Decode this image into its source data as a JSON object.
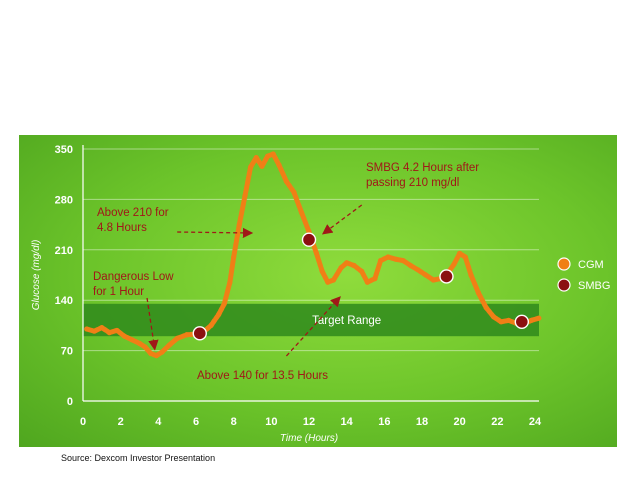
{
  "source_note": "Source: Dexcom Investor Presentation",
  "chart_data": {
    "type": "line",
    "xlabel": "Time (Hours)",
    "ylabel": "Glucose (mg/dl)",
    "xlim": [
      0,
      24
    ],
    "ylim": [
      0,
      350
    ],
    "x_ticks": [
      "0",
      "2",
      "4",
      "6",
      "8",
      "10",
      "12",
      "14",
      "16",
      "18",
      "20",
      "22",
      "24"
    ],
    "y_ticks": [
      "0",
      "70",
      "140",
      "210",
      "280",
      "350"
    ],
    "grid": true,
    "legend_position": "right",
    "target_range": {
      "label": "Target Range",
      "low": 90,
      "high": 135
    },
    "series": [
      {
        "name": "CGM",
        "color": "#f07f16",
        "style": "dotted-line",
        "points": [
          [
            0.2,
            100
          ],
          [
            0.6,
            97
          ],
          [
            1.0,
            102
          ],
          [
            1.4,
            95
          ],
          [
            1.8,
            98
          ],
          [
            2.2,
            90
          ],
          [
            2.6,
            85
          ],
          [
            3.0,
            80
          ],
          [
            3.3,
            75
          ],
          [
            3.6,
            66
          ],
          [
            3.9,
            63
          ],
          [
            4.2,
            68
          ],
          [
            4.6,
            78
          ],
          [
            5.0,
            87
          ],
          [
            5.5,
            92
          ],
          [
            6.0,
            93
          ],
          [
            6.4,
            96
          ],
          [
            6.8,
            105
          ],
          [
            7.2,
            120
          ],
          [
            7.5,
            135
          ],
          [
            7.8,
            165
          ],
          [
            8.0,
            200
          ],
          [
            8.3,
            245
          ],
          [
            8.6,
            285
          ],
          [
            8.9,
            325
          ],
          [
            9.2,
            338
          ],
          [
            9.5,
            326
          ],
          [
            9.8,
            340
          ],
          [
            10.1,
            343
          ],
          [
            10.4,
            328
          ],
          [
            10.8,
            305
          ],
          [
            11.2,
            290
          ],
          [
            11.6,
            262
          ],
          [
            12.0,
            235
          ],
          [
            12.4,
            205
          ],
          [
            12.7,
            180
          ],
          [
            13.0,
            165
          ],
          [
            13.3,
            168
          ],
          [
            13.7,
            185
          ],
          [
            14.0,
            192
          ],
          [
            14.4,
            188
          ],
          [
            14.8,
            180
          ],
          [
            15.1,
            165
          ],
          [
            15.5,
            170
          ],
          [
            15.8,
            195
          ],
          [
            16.2,
            200
          ],
          [
            16.6,
            197
          ],
          [
            17.0,
            195
          ],
          [
            17.4,
            188
          ],
          [
            17.8,
            182
          ],
          [
            18.2,
            175
          ],
          [
            18.6,
            168
          ],
          [
            19.0,
            170
          ],
          [
            19.3,
            175
          ],
          [
            19.7,
            190
          ],
          [
            20.0,
            205
          ],
          [
            20.3,
            200
          ],
          [
            20.6,
            175
          ],
          [
            21.0,
            150
          ],
          [
            21.4,
            130
          ],
          [
            21.8,
            117
          ],
          [
            22.2,
            110
          ],
          [
            22.6,
            112
          ],
          [
            23.0,
            108
          ],
          [
            23.4,
            107
          ],
          [
            23.8,
            112
          ],
          [
            24.2,
            115
          ]
        ]
      },
      {
        "name": "SMBG",
        "color": "#8b1010",
        "style": "markers",
        "points": [
          [
            6.2,
            94
          ],
          [
            12.0,
            224
          ],
          [
            19.3,
            173
          ],
          [
            23.3,
            110
          ]
        ]
      }
    ],
    "annotations": [
      {
        "text": "Above 210 for",
        "text2": "4.8 Hours"
      },
      {
        "text": "Dangerous Low",
        "text2": "for 1 Hour"
      },
      {
        "text": "SMBG 4.2 Hours after",
        "text2": "passing 210 mg/dl"
      },
      {
        "text": "Above 140 for 13.5 Hours",
        "text2": ""
      }
    ]
  }
}
